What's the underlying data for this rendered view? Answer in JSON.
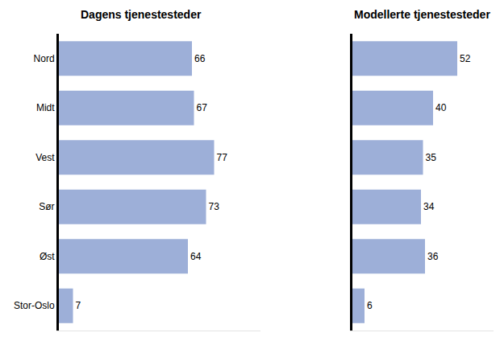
{
  "chart_data": [
    {
      "type": "bar",
      "title": "Dagens tjenestesteder",
      "categories": [
        "Nord",
        "Midt",
        "Vest",
        "Sør",
        "Øst",
        "Stor-Oslo"
      ],
      "values": [
        66,
        67,
        77,
        73,
        64,
        7
      ],
      "color": "#9dafd8",
      "orientation": "horizontal",
      "data_labels": true,
      "xlim": [
        0,
        100
      ],
      "tick_labels": "y",
      "grid": false
    },
    {
      "type": "bar",
      "title": "Modellerte tjenestesteder",
      "categories": [
        "Nord",
        "Midt",
        "Vest",
        "Sør",
        "Øst",
        "Stor-Oslo"
      ],
      "values": [
        52,
        40,
        35,
        34,
        36,
        6
      ],
      "color": "#9dafd8",
      "orientation": "horizontal",
      "data_labels": true,
      "xlim": [
        0,
        70
      ],
      "tick_labels": false,
      "grid": false
    }
  ]
}
